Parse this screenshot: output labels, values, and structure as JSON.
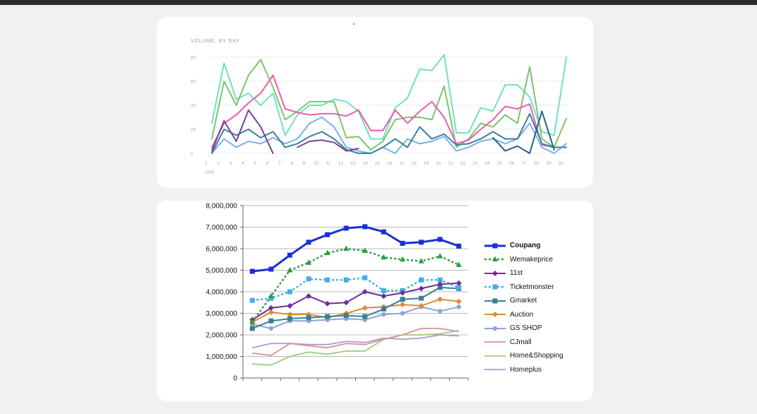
{
  "charts": [
    {
      "id": "chart1",
      "chart_data": {
        "type": "line",
        "title": "VOLUME, BY DAY",
        "month_label": "APR",
        "x": [
          1,
          2,
          3,
          4,
          5,
          6,
          7,
          8,
          9,
          10,
          11,
          12,
          13,
          14,
          15,
          16,
          17,
          18,
          19,
          20,
          21,
          22,
          23,
          24,
          25,
          26,
          27,
          28,
          29,
          30
        ],
        "ylim": [
          0,
          80
        ],
        "yticks": [
          0,
          20,
          40,
          60,
          80
        ],
        "grid": true,
        "legend": "none",
        "series": [
          {
            "color": "#6ee0c8",
            "values": [
              25,
              75,
              45,
              50,
              40,
              50,
              15,
              32,
              40,
              40,
              45,
              43,
              35,
              12,
              12,
              38,
              46,
              70,
              69,
              82,
              17,
              17,
              38,
              35,
              57,
              57,
              47,
              18,
              15,
              80
            ]
          },
          {
            "color": "#7cc66a",
            "values": [
              12,
              60,
              40,
              65,
              78,
              55,
              28,
              35,
              43,
              43,
              43,
              13,
              14,
              3,
              10,
              28,
              30,
              30,
              28,
              56,
              5,
              12,
              25,
              22,
              32,
              25,
              72,
              12,
              5,
              29
            ]
          },
          {
            "color": "#e95fa6",
            "values": [
              5,
              25,
              32,
              42,
              50,
              65,
              37,
              34,
              32,
              33,
              33,
              31,
              36,
              19,
              19,
              36,
              25,
              35,
              43,
              30,
              8,
              11,
              20,
              28,
              39,
              37,
              41,
              7,
              5,
              5
            ]
          },
          {
            "color": "#7ab1e9",
            "values": [
              0,
              12,
              5,
              10,
              8,
              13,
              8,
              12,
              25,
              30,
              22,
              5,
              2,
              0,
              5,
              0,
              12,
              8,
              10,
              14,
              2,
              5,
              10,
              12,
              8,
              12,
              25,
              5,
              0,
              8
            ]
          },
          {
            "color": "#3d7fa0",
            "values": [
              0,
              20,
              15,
              20,
              13,
              18,
              5,
              8,
              14,
              18,
              12,
              3,
              0,
              0,
              5,
              12,
              5,
              22,
              12,
              16,
              7,
              8,
              12,
              18,
              12,
              12,
              33,
              8,
              5,
              5
            ]
          },
          {
            "color": "#7b3f98",
            "values": [
              2,
              27,
              10,
              36,
              22,
              0,
              null,
              5,
              10,
              11,
              9,
              2,
              4,
              null,
              null,
              null,
              null,
              null,
              null,
              null,
              null,
              null,
              null,
              null,
              null,
              null,
              null,
              null,
              null,
              null
            ]
          },
          {
            "color": "#24608a",
            "values": [
              null,
              null,
              null,
              null,
              null,
              null,
              null,
              null,
              null,
              null,
              null,
              null,
              null,
              null,
              null,
              null,
              null,
              null,
              null,
              null,
              null,
              null,
              null,
              13,
              2,
              6,
              0,
              35,
              3,
              null
            ]
          }
        ]
      }
    },
    {
      "id": "chart2",
      "chart_data": {
        "type": "line",
        "ylim": [
          0,
          8000000
        ],
        "ytick_values": [
          0,
          1000000,
          2000000,
          3000000,
          4000000,
          5000000,
          6000000,
          7000000,
          8000000
        ],
        "ytick_labels": [
          "0",
          "1,000,000",
          "2,000,000",
          "3,000,000",
          "4,000,000",
          "5,000,000",
          "6,000,000",
          "7,000,000",
          "8,000,000"
        ],
        "x_count": 12,
        "grid": true,
        "legend": "right",
        "series": [
          {
            "name": "Coupang",
            "color": "#1a2fd6",
            "width": 3,
            "dash": "",
            "marker": "square",
            "values": [
              4950000,
              5050000,
              5700000,
              6300000,
              6650000,
              6950000,
              7020000,
              6780000,
              6250000,
              6300000,
              6430000,
              6120000
            ]
          },
          {
            "name": "Wemakeprice",
            "color": "#2e9e3e",
            "width": 2.5,
            "dash": "3,3",
            "marker": "triangle",
            "values": [
              2600000,
              3800000,
              5000000,
              5350000,
              5800000,
              6000000,
              5900000,
              5600000,
              5500000,
              5420000,
              5650000,
              5250000
            ]
          },
          {
            "name": "11st",
            "color": "#6b2fa0",
            "width": 2,
            "dash": "",
            "marker": "diamond",
            "values": [
              2700000,
              3250000,
              3350000,
              3800000,
              3450000,
              3500000,
              4000000,
              3800000,
              3950000,
              4150000,
              4350000,
              4400000
            ]
          },
          {
            "name": "Ticketmonster",
            "color": "#41aee8",
            "width": 2.5,
            "dash": "3,3",
            "marker": "square",
            "values": [
              3600000,
              3700000,
              4000000,
              4600000,
              4550000,
              4550000,
              4650000,
              4050000,
              4050000,
              4550000,
              4550000,
              4200000
            ]
          },
          {
            "name": "Gmarket",
            "color": "#3a7f94",
            "width": 2,
            "dash": "",
            "marker": "square",
            "values": [
              2300000,
              2650000,
              2750000,
              2800000,
              2850000,
              2900000,
              2850000,
              3200000,
              3650000,
              3700000,
              4200000,
              4150000
            ]
          },
          {
            "name": "Auction",
            "color": "#d98c3a",
            "width": 2,
            "dash": "",
            "marker": "diamond",
            "values": [
              2600000,
              3050000,
              2950000,
              2950000,
              2800000,
              3000000,
              3250000,
              3300000,
              3400000,
              3350000,
              3650000,
              3550000
            ]
          },
          {
            "name": "GS SHOP",
            "color": "#8ea6cf",
            "width": 2,
            "dash": "",
            "marker": "circle",
            "values": [
              2500000,
              2300000,
              2650000,
              2650000,
              2700000,
              2750000,
              2700000,
              2950000,
              3000000,
              3300000,
              3100000,
              3300000
            ]
          },
          {
            "name": "CJmall",
            "color": "#d99393",
            "width": 1.8,
            "dash": "",
            "marker": "none",
            "values": [
              1150000,
              1050000,
              1600000,
              1500000,
              1400000,
              1600000,
              1550000,
              1800000,
              2000000,
              2300000,
              2300000,
              2150000
            ]
          },
          {
            "name": "Home&Shopping",
            "color": "#9ccc78",
            "width": 1.8,
            "dash": "",
            "marker": "none",
            "values": [
              650000,
              600000,
              1000000,
              1200000,
              1100000,
              1250000,
              1250000,
              1800000,
              2000000,
              2000000,
              2050000,
              2200000
            ]
          },
          {
            "name": "Homeplus",
            "color": "#a99cc9",
            "width": 1.8,
            "dash": "",
            "marker": "none",
            "values": [
              1400000,
              1600000,
              1600000,
              1550000,
              1550000,
              1700000,
              1650000,
              1850000,
              1800000,
              1850000,
              2000000,
              1950000
            ]
          }
        ]
      }
    }
  ]
}
